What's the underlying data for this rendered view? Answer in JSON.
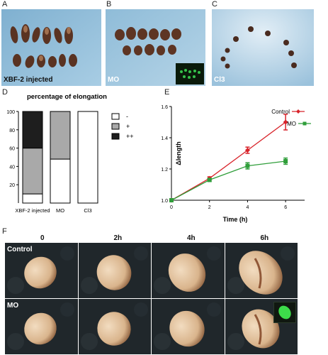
{
  "panels": {
    "a": {
      "letter": "A",
      "caption": "XBF-2 injected"
    },
    "b": {
      "letter": "B",
      "caption": "MO"
    },
    "c": {
      "letter": "C",
      "caption": "Cl3"
    },
    "d": {
      "letter": "D"
    },
    "e": {
      "letter": "E"
    },
    "f": {
      "letter": "F"
    }
  },
  "chart_data": [
    {
      "type": "bar",
      "stacked": true,
      "title": "percentage of elongation",
      "categories": [
        "XBF-2 injected",
        "MO",
        "Cl3"
      ],
      "series": [
        {
          "name": "-",
          "values": [
            10,
            48,
            100
          ],
          "color": "#ffffff"
        },
        {
          "name": "+",
          "values": [
            50,
            52,
            0
          ],
          "color": "#a9a9a9"
        },
        {
          "name": "++",
          "values": [
            40,
            0,
            0
          ],
          "color": "#1e1e1e"
        }
      ],
      "ylim": [
        0,
        100
      ],
      "yticks": [
        "20",
        "40",
        "60",
        "80",
        "100"
      ],
      "legend": "right"
    },
    {
      "type": "line",
      "xlabel": "Time (h)",
      "ylabel": "Δlength",
      "x": [
        0,
        2,
        4,
        6
      ],
      "xticks": [
        "0",
        "2",
        "4",
        "6"
      ],
      "yticks": [
        "1.0",
        "1.2",
        "1.4",
        "1.6"
      ],
      "xlim": [
        0,
        7
      ],
      "ylim": [
        1.0,
        1.6
      ],
      "series": [
        {
          "name": "Control",
          "values": [
            1.0,
            1.14,
            1.32,
            1.5
          ],
          "errors": [
            0,
            0.01,
            0.02,
            0.05
          ],
          "color": "#d8232a",
          "marker": "diamond"
        },
        {
          "name": "MO",
          "values": [
            1.0,
            1.13,
            1.22,
            1.25
          ],
          "errors": [
            0,
            0.01,
            0.02,
            0.02
          ],
          "color": "#2f9e3a",
          "marker": "square"
        }
      ],
      "legend": "top-right"
    }
  ],
  "time_series": {
    "columns": [
      "0",
      "2h",
      "4h",
      "6h"
    ],
    "rows": [
      "Control",
      "MO"
    ],
    "elongation": {
      "Control": [
        0.0,
        0.25,
        0.5,
        1.0
      ],
      "MO": [
        0.0,
        0.15,
        0.3,
        0.55
      ]
    }
  }
}
